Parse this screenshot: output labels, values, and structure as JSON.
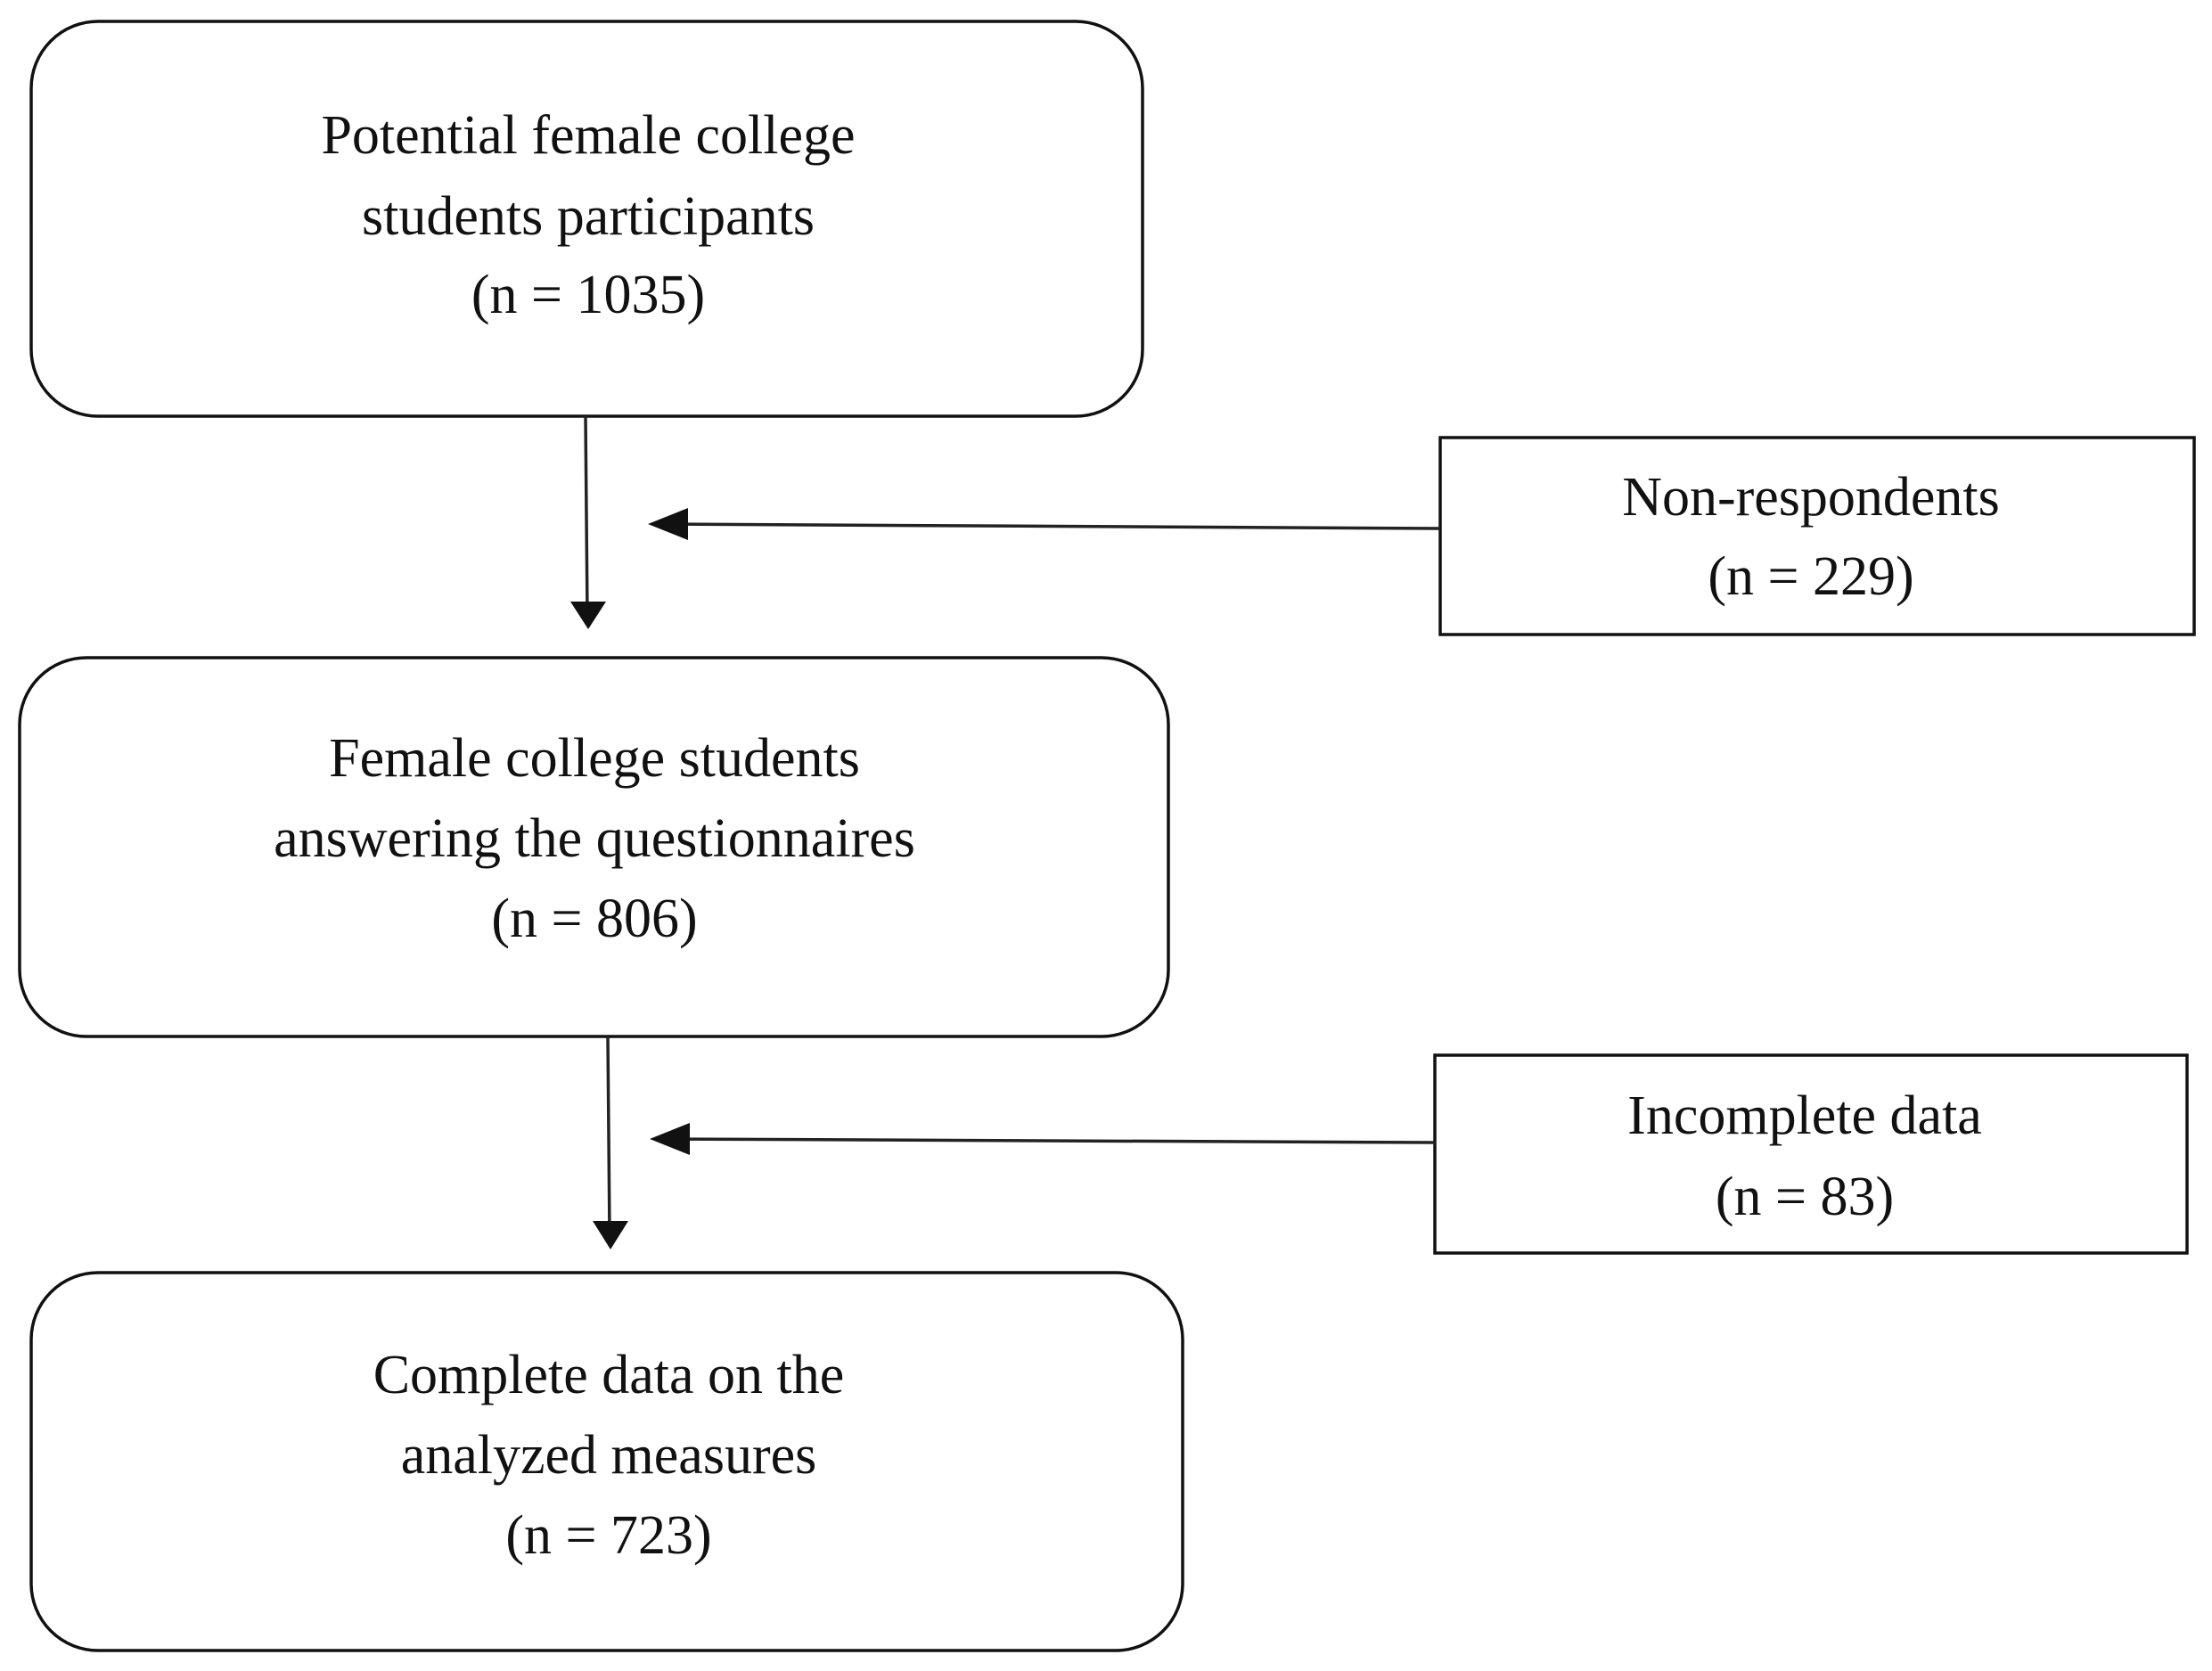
{
  "nodes": [
    {
      "lines": [
        "Potential female college",
        "students participants",
        "(n = 1035)"
      ]
    },
    {
      "lines": [
        "Female college students",
        "answering the questionnaires",
        "(n = 806)"
      ]
    },
    {
      "lines": [
        "Complete data on the",
        "analyzed measures",
        "(n = 723)"
      ]
    },
    {
      "lines": [
        "Non-respondents",
        "(n = 229)"
      ]
    },
    {
      "lines": [
        "Incomplete data",
        "(n = 83)"
      ]
    }
  ]
}
